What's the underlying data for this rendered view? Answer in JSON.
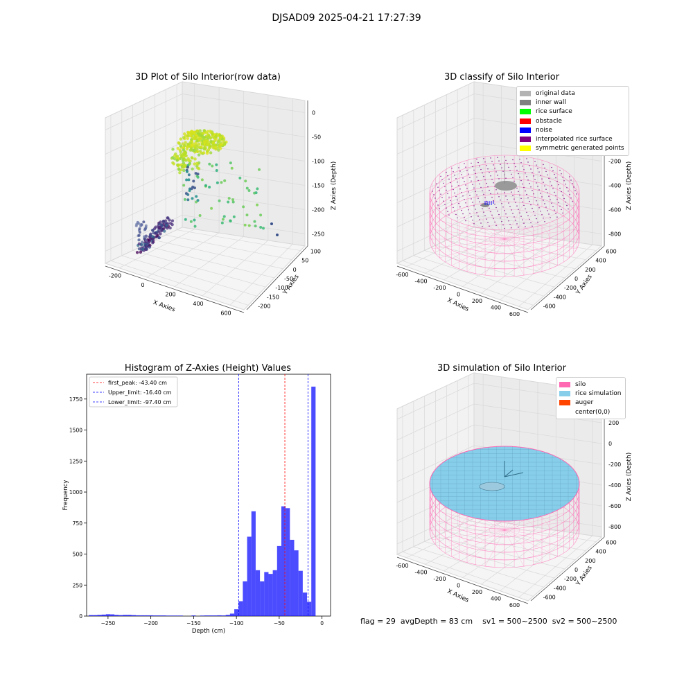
{
  "suptitle": "DJSAD09 2025-04-21 17:27:39",
  "panels": {
    "raw": {
      "title": "3D Plot of Silo Interior(row data)",
      "x_label": "X Axies",
      "y_label": "Y Axies",
      "z_label": "Z Axies (Depth)",
      "x_ticks": [
        "-200",
        "0",
        "200",
        "400",
        "600"
      ],
      "y_ticks": [
        "100",
        "50",
        "0",
        "-50",
        "-100",
        "-150",
        "-200"
      ],
      "z_ticks": [
        "0",
        "-50",
        "-100",
        "-150",
        "-200",
        "-250"
      ]
    },
    "classify": {
      "title": "3D classify of Silo Interior",
      "x_label": "X Axies",
      "y_label": "Y Axies",
      "z_label": "Z Axies (Depth)",
      "x_ticks": [
        "-600",
        "-400",
        "-200",
        "0",
        "200",
        "400",
        "600"
      ],
      "y_ticks": [
        "600",
        "400",
        "200",
        "0",
        "-200",
        "-400",
        "-600"
      ],
      "z_ticks": [
        "200",
        "0",
        "-200",
        "-400",
        "-600",
        "-800"
      ],
      "legend": [
        {
          "label": "original data",
          "color": "#b3b3b3"
        },
        {
          "label": "inner wall",
          "color": "#808080"
        },
        {
          "label": "rice surface",
          "color": "#00ff00"
        },
        {
          "label": "obstacle",
          "color": "#ff0000"
        },
        {
          "label": "noise",
          "color": "#0000ff"
        },
        {
          "label": "interpolated rice surface",
          "color": "#800080"
        },
        {
          "label": "symmetric generated points",
          "color": "#ffff00"
        }
      ]
    },
    "simulation": {
      "title": "3D simulation of Silo Interior",
      "x_label": "X Axies",
      "y_label": "Y Axies",
      "z_label": "Z Axies (Depth)",
      "x_ticks": [
        "-600",
        "-400",
        "-200",
        "0",
        "200",
        "400",
        "600"
      ],
      "y_ticks": [
        "600",
        "400",
        "200",
        "0",
        "-200",
        "-400",
        "-600"
      ],
      "z_ticks": [
        "400",
        "200",
        "0",
        "-200",
        "-400",
        "-600",
        "-800"
      ],
      "legend": [
        {
          "label": "silo",
          "color": "#ff69b4"
        },
        {
          "label": "rice simulation",
          "color": "#87ceeb"
        },
        {
          "label": "auger",
          "color": "#ff4500"
        },
        {
          "label": "center(0,0)",
          "color": "#ffffff"
        }
      ]
    }
  },
  "chart_data": [
    {
      "type": "scatter",
      "title": "3D Plot of Silo Interior(row data)",
      "xlabel": "X Axies",
      "ylabel": "Y Axies",
      "zlabel": "Z Axies (Depth)",
      "clusters": [
        {
          "name": "",
          "x_range": [
            -30,
            180
          ],
          "y_range": [
            20,
            90
          ],
          "z_range": [
            -60,
            0
          ],
          "color": "yellow-green"
        },
        {
          "name": "",
          "x_range": [
            100,
            350
          ],
          "y_range": [
            -120,
            50
          ],
          "z_range": [
            -250,
            -100
          ],
          "color": "green"
        },
        {
          "name": "",
          "x_range": [
            -230,
            40
          ],
          "y_range": [
            -200,
            -130
          ],
          "z_range": [
            -270,
            -200
          ],
          "color": "purple"
        }
      ]
    },
    {
      "type": "scatter",
      "title": "3D classify of Silo Interior",
      "xlabel": "X Axies",
      "ylabel": "Y Axies",
      "zlabel": "Z Axies (Depth)",
      "silo_radius": 650,
      "silo_depth": [
        -850,
        0
      ]
    },
    {
      "type": "bar",
      "title": "Histogram of Z-Axies (Height) Values",
      "xlabel": "Depth (cm)",
      "ylabel": "Frequency",
      "xlim": [
        -275,
        10
      ],
      "ylim": [
        0,
        1950
      ],
      "x_ticks": [
        -250,
        -200,
        -150,
        -100,
        -50,
        0
      ],
      "y_ticks": [
        0,
        250,
        500,
        750,
        1000,
        1250,
        1500,
        1750
      ],
      "bin_width": 5,
      "bins": [
        {
          "x": -270,
          "v": 8
        },
        {
          "x": -265,
          "v": 8
        },
        {
          "x": -260,
          "v": 10
        },
        {
          "x": -255,
          "v": 12
        },
        {
          "x": -250,
          "v": 15
        },
        {
          "x": -245,
          "v": 14
        },
        {
          "x": -240,
          "v": 10
        },
        {
          "x": -235,
          "v": 8
        },
        {
          "x": -230,
          "v": 10
        },
        {
          "x": -225,
          "v": 10
        },
        {
          "x": -220,
          "v": 8
        },
        {
          "x": -215,
          "v": 6
        },
        {
          "x": -210,
          "v": 6
        },
        {
          "x": -205,
          "v": 6
        },
        {
          "x": -200,
          "v": 6
        },
        {
          "x": -195,
          "v": 5
        },
        {
          "x": -190,
          "v": 5
        },
        {
          "x": -185,
          "v": 5
        },
        {
          "x": -180,
          "v": 4
        },
        {
          "x": -175,
          "v": 4
        },
        {
          "x": -170,
          "v": 4
        },
        {
          "x": -165,
          "v": 4
        },
        {
          "x": -150,
          "v": 5
        },
        {
          "x": -140,
          "v": 4
        },
        {
          "x": -135,
          "v": 5
        },
        {
          "x": -130,
          "v": 5
        },
        {
          "x": -125,
          "v": 5
        },
        {
          "x": -120,
          "v": 6
        },
        {
          "x": -115,
          "v": 5
        },
        {
          "x": -110,
          "v": 10
        },
        {
          "x": -105,
          "v": 20
        },
        {
          "x": -100,
          "v": 55
        },
        {
          "x": -95,
          "v": 120
        },
        {
          "x": -90,
          "v": 280
        },
        {
          "x": -85,
          "v": 640
        },
        {
          "x": -80,
          "v": 845
        },
        {
          "x": -75,
          "v": 370
        },
        {
          "x": -70,
          "v": 280
        },
        {
          "x": -65,
          "v": 355
        },
        {
          "x": -60,
          "v": 340
        },
        {
          "x": -55,
          "v": 370
        },
        {
          "x": -50,
          "v": 565
        },
        {
          "x": -45,
          "v": 885
        },
        {
          "x": -40,
          "v": 870
        },
        {
          "x": -35,
          "v": 615
        },
        {
          "x": -30,
          "v": 530
        },
        {
          "x": -25,
          "v": 365
        },
        {
          "x": -20,
          "v": 190
        },
        {
          "x": -15,
          "v": 115
        },
        {
          "x": -10,
          "v": 1850
        }
      ],
      "bar_color": "#0000ff",
      "vlines": [
        {
          "name": "first_peak: -43.40 cm",
          "x": -43.4,
          "color": "#ff0000"
        },
        {
          "name": "Upper_limit: -16.40 cm",
          "x": -16.4,
          "color": "#0000ff"
        },
        {
          "name": "Lower_limit: -97.40 cm",
          "x": -97.4,
          "color": "#0000ff"
        }
      ],
      "legend_position": "upper-left"
    },
    {
      "type": "area",
      "title": "3D simulation of Silo Interior",
      "xlabel": "X Axies",
      "ylabel": "Y Axies",
      "zlabel": "Z Axies (Depth)",
      "silo_radius": 650,
      "silo_depth": [
        -850,
        0
      ]
    }
  ],
  "footer": {
    "flag": "flag = 29",
    "avg_depth": "avgDepth = 83 cm",
    "sv1": "sv1 = 500~2500",
    "sv2": "sv2 = 500~2500"
  }
}
